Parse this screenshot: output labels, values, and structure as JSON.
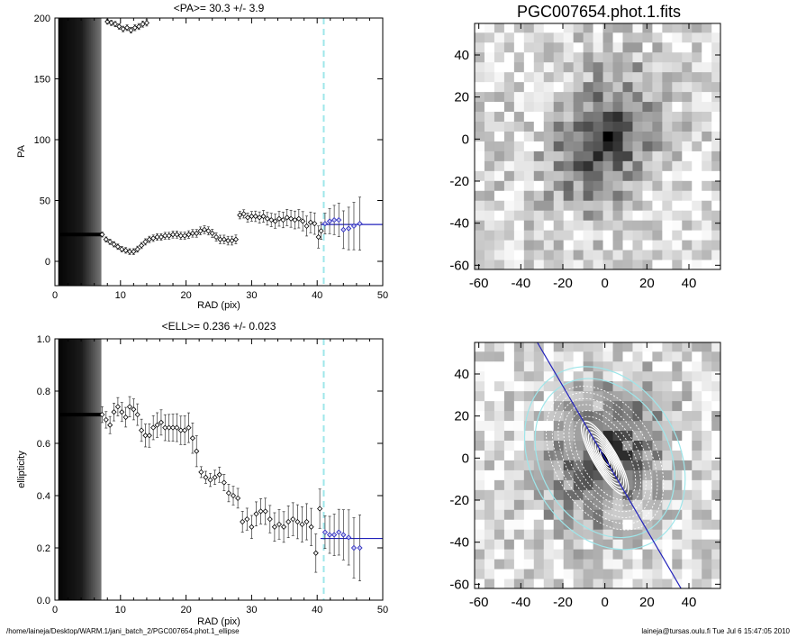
{
  "footer": {
    "path": "/home/laineja/Desktop/WARM.1/jani_batch_2/PGC007654.phot.1_ellipse",
    "stamp": "laineja@tursas.oulu.fi  Tue Jul  6 15:47:05 2010"
  },
  "chart_data": [
    {
      "type": "scatter",
      "title": "<PA>=  30.3 +/-   3.9",
      "xlabel": "RAD (pix)",
      "ylabel": "PA",
      "xlim": [
        0,
        50
      ],
      "ylim": [
        -20,
        200
      ],
      "xticks": [
        0,
        10,
        20,
        30,
        40,
        50
      ],
      "yticks": [
        0,
        50,
        100,
        150,
        200
      ],
      "grid": false,
      "legend": "none",
      "shaded_band_x": [
        0.5,
        7
      ],
      "marker_line": {
        "x": [
          0.7,
          7
        ],
        "y": 22
      },
      "fit_line": {
        "x": [
          40.5,
          50
        ],
        "y": 30.3,
        "color": "#2222bb"
      },
      "vline_x": 41,
      "vline_color": "#9ee6ea",
      "series": [
        {
          "x": [
            7.2,
            7.8,
            8.4,
            9.0,
            9.6,
            10.2,
            10.8,
            11.4,
            12.0,
            12.6,
            13.2,
            13.8,
            14.4,
            15.0,
            15.6,
            16.2,
            16.8,
            17.4,
            18.0,
            18.6,
            19.2,
            19.8,
            20.4,
            21.0,
            21.6,
            22.2,
            22.8,
            23.4,
            24.0,
            24.6,
            25.2,
            25.8,
            26.4,
            27.0,
            27.6
          ],
          "y": [
            22,
            18,
            16,
            14,
            12,
            10,
            9,
            8,
            8,
            10,
            13,
            16,
            18,
            19,
            20,
            20,
            21,
            21,
            22,
            22,
            21,
            21,
            22,
            23,
            23,
            25,
            26,
            25,
            23,
            20,
            18,
            18,
            17,
            17,
            18
          ]
        },
        {
          "x": [
            28.2,
            28.8,
            29.4,
            30.0,
            30.6,
            31.2,
            31.8,
            32.4,
            33.0,
            33.6,
            34.2,
            34.8,
            35.4,
            36.0,
            36.6,
            37.2,
            37.8,
            38.4,
            39.0,
            39.6,
            40.2,
            40.6
          ],
          "y": [
            38,
            39,
            36,
            37,
            37,
            36,
            37,
            35,
            34,
            33,
            35,
            34,
            36,
            35,
            34,
            35,
            33,
            29,
            32,
            31,
            20,
            25
          ]
        },
        {
          "x": [
            41.2,
            41.9,
            42.6,
            43.3,
            44.0,
            44.8,
            45.6,
            46.5
          ],
          "y": [
            31,
            33,
            34,
            34,
            26,
            27,
            29,
            31
          ]
        },
        {
          "x": [
            8.0,
            8.6,
            9.2,
            9.8,
            10.4,
            11.0,
            11.6,
            12.2,
            12.8,
            13.4,
            14.0
          ],
          "y": [
            197,
            196,
            195,
            193,
            191,
            192,
            190,
            192,
            193,
            195,
            196
          ]
        }
      ]
    },
    {
      "type": "heatmap",
      "title": "PGC007654.phot.1.fits",
      "xlim": [
        -62,
        55
      ],
      "ylim": [
        -62,
        55
      ],
      "xticks": [
        -60,
        -40,
        -20,
        0,
        20,
        40
      ],
      "yticks": [
        -60,
        -40,
        -20,
        0,
        20,
        40
      ],
      "center": [
        0,
        0
      ],
      "colormap": "white-to-black"
    },
    {
      "type": "scatter",
      "title": "<ELL>= 0.236 +/-  0.023",
      "xlabel": "RAD (pix)",
      "ylabel": "ellipticity",
      "xlim": [
        0,
        50
      ],
      "ylim": [
        0.0,
        1.0
      ],
      "xticks": [
        0,
        10,
        20,
        30,
        40,
        50
      ],
      "yticks": [
        0.0,
        0.2,
        0.4,
        0.6,
        0.8,
        1.0
      ],
      "grid": false,
      "legend": "none",
      "shaded_band_x": [
        0.5,
        7
      ],
      "marker_line": {
        "x": [
          0.7,
          7
        ],
        "y": 0.71
      },
      "fit_line": {
        "x": [
          40.5,
          50
        ],
        "y": 0.236,
        "color": "#2222bb"
      },
      "vline_x": 41,
      "vline_color": "#9ee6ea",
      "series": [
        {
          "x": [
            7.2,
            7.8,
            8.4,
            9.0,
            9.6,
            10.2,
            10.8,
            11.4,
            12.0,
            12.6,
            13.2,
            13.8,
            14.4,
            15.0,
            15.6,
            16.2,
            16.8,
            17.4,
            18.0,
            18.6,
            19.2,
            19.8,
            20.4,
            21.0,
            21.6
          ],
          "y": [
            0.71,
            0.69,
            0.67,
            0.72,
            0.74,
            0.72,
            0.7,
            0.74,
            0.73,
            0.71,
            0.65,
            0.63,
            0.63,
            0.66,
            0.67,
            0.68,
            0.66,
            0.66,
            0.66,
            0.66,
            0.65,
            0.65,
            0.66,
            0.62,
            0.57
          ]
        },
        {
          "x": [
            22.3,
            23.0,
            23.7,
            24.4,
            25.1,
            25.8,
            26.5,
            27.2,
            27.9,
            28.6,
            29.3,
            30.0,
            30.7,
            31.4,
            32.1,
            32.8,
            33.5,
            34.2,
            34.9,
            35.6,
            36.3,
            37.0,
            37.7,
            38.4,
            39.1,
            39.8,
            40.4
          ],
          "y": [
            0.49,
            0.47,
            0.46,
            0.47,
            0.48,
            0.45,
            0.41,
            0.4,
            0.39,
            0.3,
            0.31,
            0.28,
            0.33,
            0.34,
            0.34,
            0.31,
            0.28,
            0.29,
            0.28,
            0.3,
            0.31,
            0.3,
            0.29,
            0.3,
            0.28,
            0.18,
            0.35
          ]
        },
        {
          "x": [
            41.2,
            41.9,
            42.6,
            43.3,
            44.0,
            44.8,
            45.6,
            46.5
          ],
          "y": [
            0.26,
            0.25,
            0.25,
            0.26,
            0.25,
            0.24,
            0.2,
            0.2
          ]
        }
      ]
    },
    {
      "type": "heatmap",
      "title": "",
      "xlim": [
        -62,
        55
      ],
      "ylim": [
        -62,
        55
      ],
      "xticks": [
        -60,
        -40,
        -20,
        0,
        20,
        40
      ],
      "yticks": [
        -60,
        -40,
        -20,
        0,
        20,
        40
      ],
      "center": [
        0,
        0
      ],
      "colormap": "white-to-black",
      "overlay": {
        "position_angle_deg": 30.3,
        "line_color": "#2222bb",
        "ellipse_colors": [
          "#ffffff",
          "#9ee6ea"
        ],
        "cyan_semi_major_axes": [
          40,
          46
        ],
        "ellipticity": 0.236
      }
    }
  ]
}
